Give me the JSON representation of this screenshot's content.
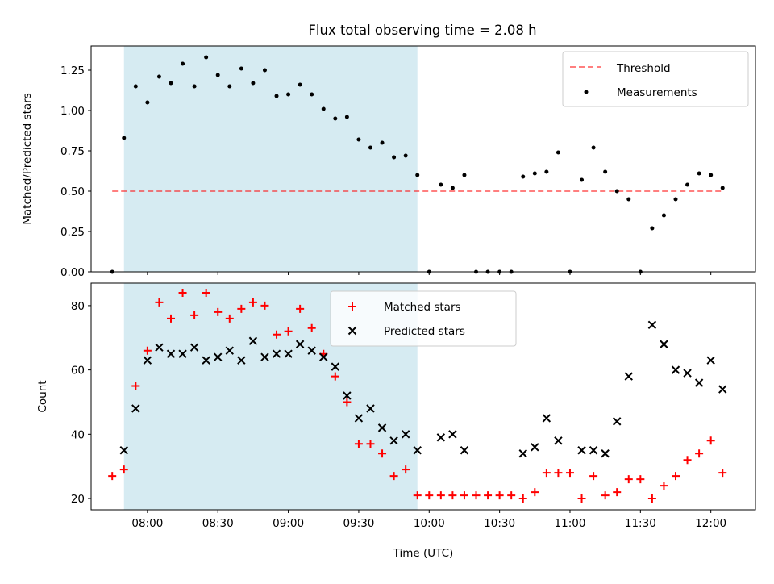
{
  "title": "Flux total observing time = 2.08 h",
  "colors": {
    "shade": "#add8e6",
    "threshold": "#ff0000",
    "measurements": "#000000",
    "matched": "#ff0000",
    "predicted": "#000000"
  },
  "chart_data": [
    {
      "type": "scatter",
      "panel": "top",
      "ylabel": "Matched/Predicted stars",
      "xlim": [
        "07:36",
        "12:19"
      ],
      "ylim": [
        0,
        1.4
      ],
      "yticks": [
        "0.00",
        "0.25",
        "0.50",
        "0.75",
        "1.00",
        "1.25"
      ],
      "shaded_interval": [
        "07:50",
        "09:55"
      ],
      "legend": {
        "placement": "top-right",
        "entries": [
          "Threshold",
          "Measurements"
        ]
      },
      "threshold": {
        "name": "Threshold",
        "value": 0.5,
        "x_range": [
          "07:45",
          "12:05"
        ],
        "style": "dashed"
      },
      "series": [
        {
          "name": "Measurements",
          "marker": "dot",
          "x": [
            "07:45",
            "07:50",
            "07:55",
            "08:00",
            "08:05",
            "08:10",
            "08:15",
            "08:20",
            "08:25",
            "08:30",
            "08:35",
            "08:40",
            "08:45",
            "08:50",
            "08:55",
            "09:00",
            "09:05",
            "09:10",
            "09:15",
            "09:20",
            "09:25",
            "09:30",
            "09:35",
            "09:40",
            "09:45",
            "09:50",
            "09:55",
            "10:00",
            "10:05",
            "10:10",
            "10:15",
            "10:20",
            "10:25",
            "10:30",
            "10:35",
            "10:40",
            "10:45",
            "10:50",
            "10:55",
            "11:00",
            "11:05",
            "11:10",
            "11:15",
            "11:20",
            "11:25",
            "11:30",
            "11:35",
            "11:40",
            "11:45",
            "11:50",
            "11:55",
            "12:00",
            "12:05"
          ],
          "values": [
            0.0,
            0.83,
            1.15,
            1.05,
            1.21,
            1.17,
            1.29,
            1.15,
            1.33,
            1.22,
            1.15,
            1.26,
            1.17,
            1.25,
            1.09,
            1.1,
            1.16,
            1.1,
            1.01,
            0.95,
            0.96,
            0.82,
            0.77,
            0.8,
            0.71,
            0.72,
            0.6,
            0.0,
            0.54,
            0.52,
            0.6,
            0.0,
            0.0,
            0.0,
            0.0,
            0.59,
            0.61,
            0.62,
            0.74,
            0.0,
            0.57,
            0.77,
            0.62,
            0.5,
            0.45,
            0.0,
            0.27,
            0.35,
            0.45,
            0.54,
            0.61,
            0.6,
            0.52
          ]
        }
      ]
    },
    {
      "type": "scatter",
      "panel": "bottom",
      "xlabel": "Time (UTC)",
      "ylabel": "Count",
      "xlim": [
        "07:36",
        "12:19"
      ],
      "ylim": [
        16.5,
        87
      ],
      "yticks": [
        "20",
        "40",
        "60",
        "80"
      ],
      "xticks": [
        "08:00",
        "08:30",
        "09:00",
        "09:30",
        "10:00",
        "10:30",
        "11:00",
        "11:30",
        "12:00"
      ],
      "shaded_interval": [
        "07:50",
        "09:55"
      ],
      "legend": {
        "placement": "top-center",
        "entries": [
          "Matched stars",
          "Predicted stars"
        ]
      },
      "series": [
        {
          "name": "Matched stars",
          "marker": "plus",
          "x": [
            "07:45",
            "07:50",
            "07:55",
            "08:00",
            "08:05",
            "08:10",
            "08:15",
            "08:20",
            "08:25",
            "08:30",
            "08:35",
            "08:40",
            "08:45",
            "08:50",
            "08:55",
            "09:00",
            "09:05",
            "09:10",
            "09:15",
            "09:20",
            "09:25",
            "09:30",
            "09:35",
            "09:40",
            "09:45",
            "09:50",
            "09:55",
            "10:00",
            "10:05",
            "10:10",
            "10:15",
            "10:20",
            "10:25",
            "10:30",
            "10:35",
            "10:40",
            "10:45",
            "10:50",
            "10:55",
            "11:00",
            "11:05",
            "11:10",
            "11:15",
            "11:20",
            "11:25",
            "11:30",
            "11:35",
            "11:40",
            "11:45",
            "11:50",
            "11:55",
            "12:00",
            "12:05"
          ],
          "values": [
            27,
            29,
            55,
            66,
            81,
            76,
            84,
            77,
            84,
            78,
            76,
            79,
            81,
            80,
            71,
            72,
            79,
            73,
            65,
            58,
            50,
            37,
            37,
            34,
            27,
            29,
            21,
            21,
            21,
            21,
            21,
            21,
            21,
            21,
            21,
            20,
            22,
            28,
            28,
            28,
            20,
            27,
            21,
            22,
            26,
            26,
            20,
            24,
            27,
            32,
            34,
            38,
            28
          ]
        },
        {
          "name": "Predicted stars",
          "marker": "x",
          "x": [
            "07:50",
            "07:55",
            "08:00",
            "08:05",
            "08:10",
            "08:15",
            "08:20",
            "08:25",
            "08:30",
            "08:35",
            "08:40",
            "08:45",
            "08:50",
            "08:55",
            "09:00",
            "09:05",
            "09:10",
            "09:15",
            "09:20",
            "09:25",
            "09:30",
            "09:35",
            "09:40",
            "09:45",
            "09:50",
            "09:55",
            "10:05",
            "10:10",
            "10:15",
            "10:40",
            "10:45",
            "10:50",
            "10:55",
            "11:05",
            "11:10",
            "11:15",
            "11:20",
            "11:25",
            "11:35",
            "11:40",
            "11:45",
            "11:50",
            "11:55",
            "12:00",
            "12:05"
          ],
          "values": [
            35,
            48,
            63,
            67,
            65,
            65,
            67,
            63,
            64,
            66,
            63,
            69,
            64,
            65,
            65,
            68,
            66,
            64,
            61,
            52,
            45,
            48,
            42,
            38,
            40,
            35,
            39,
            40,
            35,
            34,
            36,
            45,
            38,
            35,
            35,
            34,
            44,
            58,
            74,
            68,
            60,
            59,
            56,
            63,
            54
          ]
        }
      ]
    }
  ]
}
